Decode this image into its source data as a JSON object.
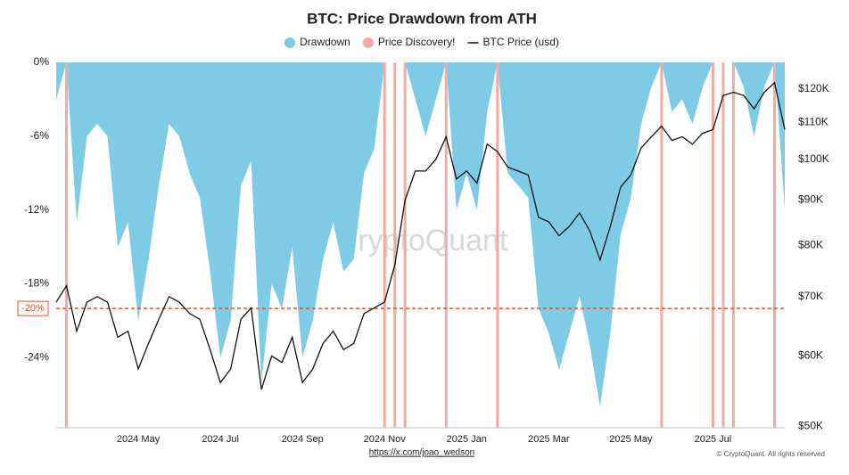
{
  "chart_data": {
    "type": "area",
    "title": "BTC: Price Drawdown from ATH",
    "watermark": "CryptoQuant",
    "source": "https://x.com/joao_wedson",
    "copyright": "© CryptoQuant. All rights reserved",
    "x": [
      "2024 Mar",
      "2024 Mar",
      "2024 Mar",
      "2024 Mar",
      "2024 Apr",
      "2024 Apr",
      "2024 Apr",
      "2024 Apr",
      "2024 May",
      "2024 May",
      "2024 May",
      "2024 May",
      "2024 Jun",
      "2024 Jun",
      "2024 Jun",
      "2024 Jun",
      "2024 Jul",
      "2024 Jul",
      "2024 Jul",
      "2024 Jul",
      "2024 Aug",
      "2024 Aug",
      "2024 Aug",
      "2024 Aug",
      "2024 Sep",
      "2024 Sep",
      "2024 Sep",
      "2024 Sep",
      "2024 Oct",
      "2024 Oct",
      "2024 Oct",
      "2024 Oct",
      "2024 Nov",
      "2024 Nov",
      "2024 Nov",
      "2024 Nov",
      "2024 Dec",
      "2024 Dec",
      "2024 Dec",
      "2024 Dec",
      "2025 Jan",
      "2025 Jan",
      "2025 Jan",
      "2025 Jan",
      "2025 Feb",
      "2025 Feb",
      "2025 Feb",
      "2025 Feb",
      "2025 Mar",
      "2025 Mar",
      "2025 Mar",
      "2025 Mar",
      "2025 Apr",
      "2025 Apr",
      "2025 Apr",
      "2025 Apr",
      "2025 May",
      "2025 May",
      "2025 May",
      "2025 May",
      "2025 Jun",
      "2025 Jun",
      "2025 Jun",
      "2025 Jun",
      "2025 Jul",
      "2025 Jul",
      "2025 Jul",
      "2025 Jul",
      "2025 Aug",
      "2025 Aug",
      "2025 Aug",
      "2025 Aug"
    ],
    "xticks": [
      "2024 May",
      "2024 Jul",
      "2024 Sep",
      "2024 Nov",
      "2025 Jan",
      "2025 Mar",
      "2025 May",
      "2025 Jul"
    ],
    "ylim": [
      -29.7,
      0
    ],
    "yticks": [
      {
        "value": 0,
        "label": "0%"
      },
      {
        "value": -6,
        "label": "-6%"
      },
      {
        "value": -12,
        "label": "-12%"
      },
      {
        "value": -18,
        "label": "-18%"
      },
      {
        "value": -24,
        "label": "-24%"
      }
    ],
    "y2lim": [
      49800,
      128600
    ],
    "y2log": true,
    "y2ticks": [
      {
        "value": 50000,
        "label": "$50K"
      },
      {
        "value": 60000,
        "label": "$60K"
      },
      {
        "value": 70000,
        "label": "$70K"
      },
      {
        "value": 80000,
        "label": "$80K"
      },
      {
        "value": 90000,
        "label": "$90K"
      },
      {
        "value": 100000,
        "label": "$100K"
      },
      {
        "value": 110000,
        "label": "$110K"
      },
      {
        "value": 120000,
        "label": "$120K"
      }
    ],
    "reference_line": {
      "value": -20,
      "label": "-20%",
      "color": "#e8502a"
    },
    "series": [
      {
        "name": "Drawdown",
        "color": "#7ecbe6",
        "values": [
          -3,
          0,
          -13,
          -6,
          -5,
          -6,
          -15,
          -13,
          -21,
          -16,
          -10,
          -5,
          -6,
          -9,
          -11,
          -17,
          -24,
          -21,
          -10,
          -8,
          -26,
          -18,
          -20,
          -15,
          -24,
          -21,
          -16,
          -13,
          -17,
          -16,
          -9,
          -7,
          0,
          0,
          0,
          -3,
          -6,
          -3,
          0,
          -12,
          -9,
          -12,
          -4,
          0,
          -9,
          -10,
          -11,
          -20,
          -22,
          -25,
          -22,
          -19,
          -23,
          -28,
          -22,
          -14,
          -11,
          -5,
          -2,
          0,
          -4,
          -3,
          -5,
          -2,
          0,
          0,
          0,
          -2,
          -6,
          -2,
          0,
          -12
        ]
      },
      {
        "name": "Price Discovery!",
        "color": "#f4aaa4"
      },
      {
        "name": "BTC Price (usd)",
        "color": "#111111",
        "axis": "y2",
        "values": [
          69000,
          72000,
          64000,
          69000,
          70000,
          69000,
          63000,
          64000,
          58000,
          62000,
          66000,
          70000,
          69000,
          67000,
          66000,
          61000,
          56000,
          58000,
          66000,
          68000,
          55000,
          60000,
          59000,
          63000,
          56000,
          58000,
          62000,
          64000,
          61000,
          62000,
          67000,
          68000,
          69000,
          76000,
          90000,
          97000,
          97000,
          100000,
          106000,
          95000,
          97000,
          94000,
          104000,
          102000,
          98000,
          97000,
          96000,
          86000,
          85000,
          82000,
          84000,
          87000,
          83000,
          77000,
          84000,
          93000,
          96000,
          103000,
          106000,
          109000,
          105000,
          106000,
          104000,
          107000,
          108000,
          118000,
          119000,
          118000,
          114000,
          119000,
          122000,
          108000
        ]
      }
    ]
  }
}
